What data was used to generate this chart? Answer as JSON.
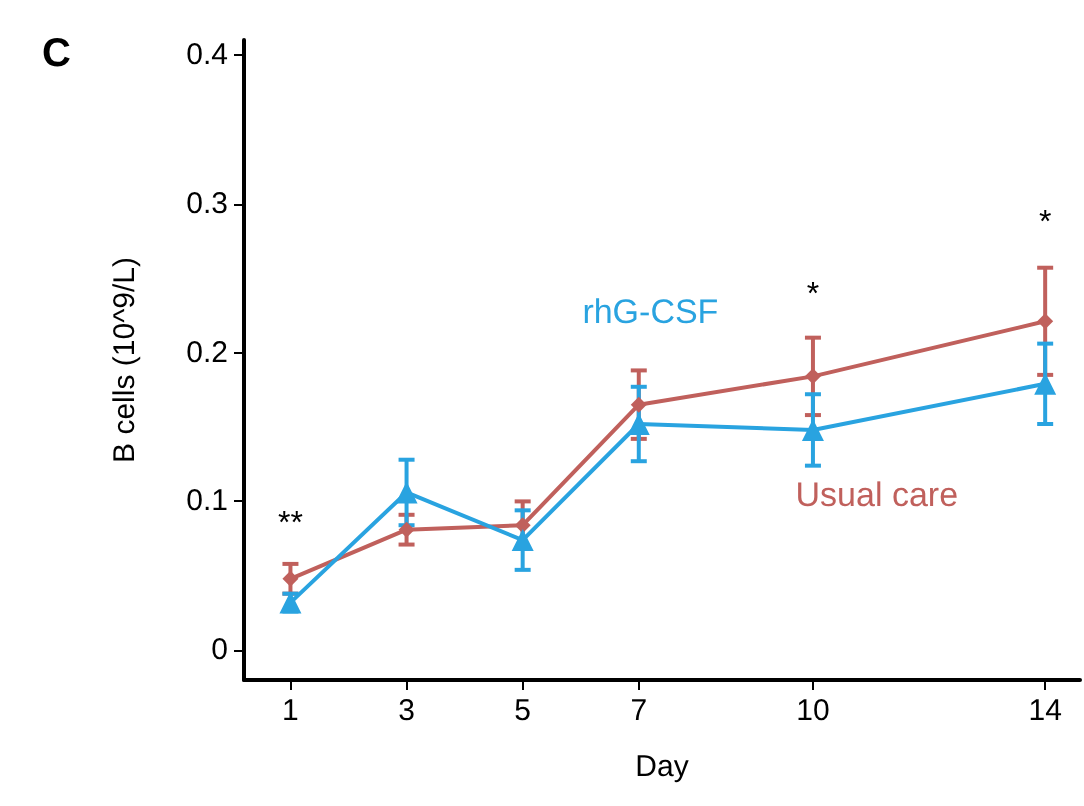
{
  "chart_data": {
    "type": "line",
    "title": "C",
    "xlabel": "Day",
    "ylabel": "B cells (10^9/L)",
    "x": [
      1,
      3,
      5,
      7,
      10,
      14
    ],
    "series": [
      {
        "name": "Usual care",
        "color": "#c0605c",
        "marker": "diamond",
        "values": [
          0.048,
          0.081,
          0.084,
          0.165,
          0.184,
          0.221
        ],
        "errors": [
          0.01,
          0.01,
          0.016,
          0.023,
          0.026,
          0.036
        ]
      },
      {
        "name": "rhG-CSF",
        "color": "#29a3e0",
        "marker": "triangle",
        "values": [
          0.032,
          0.106,
          0.074,
          0.152,
          0.148,
          0.179
        ],
        "errors": [
          0.006,
          0.022,
          0.02,
          0.025,
          0.024,
          0.027
        ]
      }
    ],
    "xlim": [
      0.2,
      14.6
    ],
    "xticks": [
      1,
      3,
      5,
      7,
      10,
      14
    ],
    "ylim": [
      -0.02,
      0.41
    ],
    "yticks": [
      0,
      0.1,
      0.2,
      0.3,
      0.4
    ],
    "grid": false,
    "legend": false,
    "line_style": "solid",
    "annotations": [
      "**",
      "*",
      "*"
    ]
  }
}
